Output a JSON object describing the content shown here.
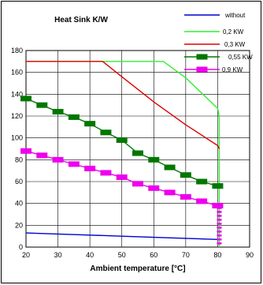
{
  "chart_data": {
    "type": "line",
    "title": "Heat Sink K/W",
    "xlabel": "Ambient temperature [°C]",
    "ylabel": "",
    "xlim": [
      20,
      90
    ],
    "ylim": [
      0,
      180
    ],
    "xticks": [
      20,
      30,
      40,
      50,
      60,
      70,
      80,
      90
    ],
    "yticks": [
      0,
      20,
      40,
      60,
      80,
      100,
      120,
      140,
      160,
      180
    ],
    "grid": true,
    "legend_position": "top-right",
    "series": [
      {
        "name": "without",
        "color": "#0000cc",
        "marker": "none",
        "x": [
          20,
          30,
          40,
          50,
          60,
          70,
          80,
          80.5
        ],
        "y": [
          13,
          12,
          11,
          10,
          9,
          8,
          7,
          7
        ]
      },
      {
        "name": "0,2 KW",
        "color": "#33ee33",
        "marker": "none",
        "x": [
          20,
          30,
          40,
          50,
          60,
          63,
          70,
          80,
          80.5,
          80.5
        ],
        "y": [
          170,
          170,
          170,
          170,
          170,
          170,
          155,
          127,
          120,
          0
        ]
      },
      {
        "name": "0,3 KW",
        "color": "#dd0000",
        "marker": "none",
        "x": [
          20,
          30,
          40,
          44,
          50,
          60,
          70,
          80,
          80.5
        ],
        "y": [
          170,
          170,
          170,
          170,
          156,
          133,
          112,
          93,
          90
        ]
      },
      {
        "name": "0,55 KW",
        "color": "#007700",
        "marker": "square",
        "x": [
          20,
          25,
          30,
          35,
          40,
          45,
          50,
          55,
          60,
          65,
          70,
          75,
          80,
          80.5
        ],
        "y": [
          136,
          130,
          124,
          119,
          113,
          105,
          98,
          86,
          80,
          73,
          66,
          60,
          56,
          54
        ]
      },
      {
        "name": "0,9 KW",
        "color": "#ee00ee",
        "marker": "square",
        "x": [
          20,
          25,
          30,
          35,
          40,
          45,
          50,
          55,
          60,
          65,
          70,
          75,
          80,
          80.5
        ],
        "y": [
          88,
          84,
          80,
          76,
          72,
          68,
          64,
          58,
          54,
          50,
          46,
          42,
          38,
          36
        ]
      }
    ]
  },
  "pink_vertical_marks": 10
}
